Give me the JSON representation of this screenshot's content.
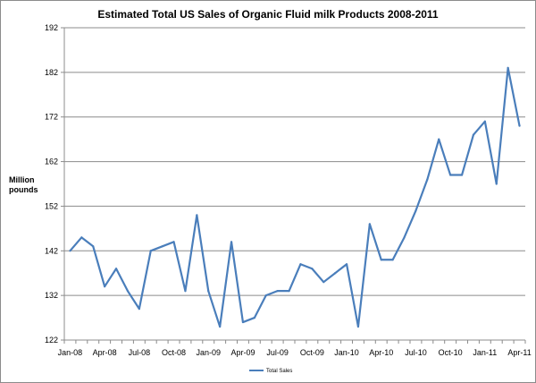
{
  "chart_data": {
    "type": "line",
    "title": "Estimated Total US Sales of Organic Fluid milk Products 2008-2011",
    "ylabel_line1": "Million",
    "ylabel_line2": "pounds",
    "xlabel": "",
    "ylim": [
      122,
      192
    ],
    "yticks": [
      122,
      132,
      142,
      152,
      162,
      172,
      182,
      192
    ],
    "grid": true,
    "legend": "bottom-center",
    "x_tick_labels": [
      "Jan-08",
      "Apr-08",
      "Jul-08",
      "Oct-08",
      "Jan-09",
      "Apr-09",
      "Jul-09",
      "Oct-09",
      "Jan-10",
      "Apr-10",
      "Jul-10",
      "Oct-10",
      "Jan-11",
      "Apr-11"
    ],
    "series": [
      {
        "name": "Total Sales",
        "color": "#4a7ebb",
        "values": [
          142,
          145,
          143,
          134,
          138,
          133,
          129,
          142,
          143,
          144,
          133,
          150,
          133,
          125,
          144,
          126,
          127,
          132,
          133,
          133,
          139,
          138,
          135,
          137,
          139,
          125,
          148,
          140,
          140,
          145,
          151,
          158,
          167,
          159,
          159,
          168,
          171,
          157,
          183,
          170
        ]
      }
    ]
  }
}
